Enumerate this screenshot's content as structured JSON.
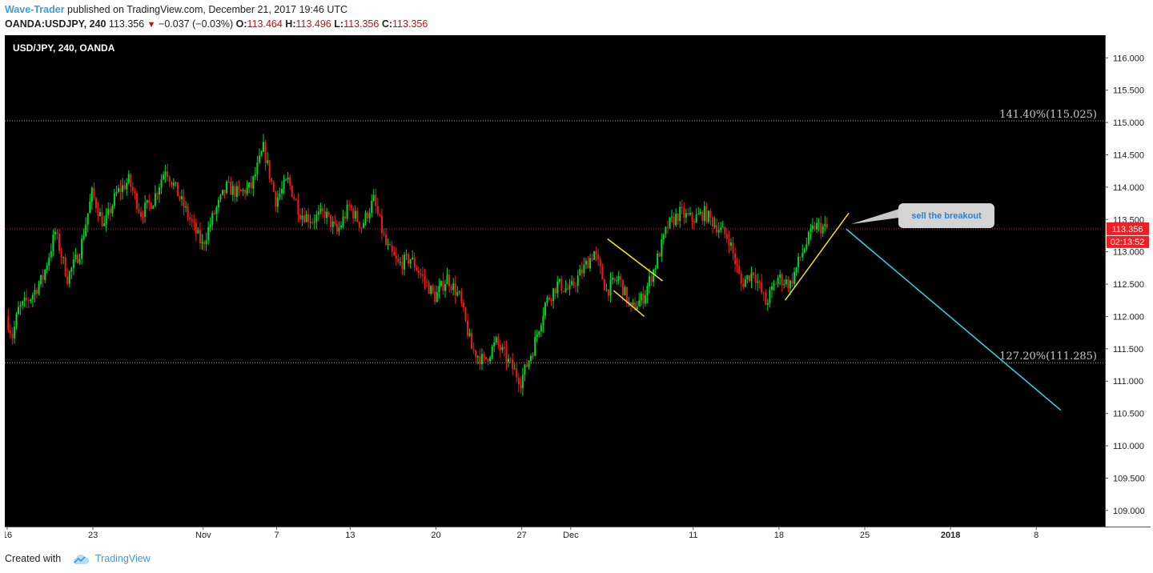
{
  "header": {
    "author": "Wave-Trader",
    "published_text": " published on TradingView.com, December 21, 2017 19:46 UTC",
    "symbol": "OANDA:USDJPY, 240",
    "last": "113.356",
    "change": "−0.037 (−0.03%)",
    "o_label": "O:",
    "o_val": "113.464",
    "h_label": "H:",
    "h_val": "113.496",
    "l_label": "L:",
    "l_val": "113.356",
    "c_label": "C:",
    "c_val": "113.356"
  },
  "footer": {
    "created_with": "Created with",
    "brand": "TradingView"
  },
  "colors": {
    "background": "#000000",
    "up_candle": "#00d928",
    "down_candle": "#f11a1a",
    "pattern_lines": "#f5e21a",
    "projection_line": "#2fd6e0",
    "price_line": "#e0182d",
    "fib_line": "#a8a8a8",
    "author": "#3d9bdb"
  },
  "chart_data": {
    "type": "candlestick",
    "title": "USD/JPY, 240, OANDA",
    "timeframe": "240",
    "y_axis": {
      "range": [
        108.75,
        116.35
      ],
      "ticks": [
        "116.000",
        "115.500",
        "115.000",
        "114.500",
        "114.000",
        "113.500",
        "113.000",
        "112.500",
        "112.000",
        "111.500",
        "111.000",
        "110.500",
        "110.000",
        "109.500",
        "109.000"
      ]
    },
    "x_axis": {
      "range": [
        "Oct 16",
        "Jan 10"
      ],
      "ticks": [
        {
          "label": "16",
          "date": "2017-10-16",
          "bold": false
        },
        {
          "label": "23",
          "date": "2017-10-23",
          "bold": false
        },
        {
          "label": "Nov",
          "date": "2017-11-01",
          "bold": false
        },
        {
          "label": "7",
          "date": "2017-11-07",
          "bold": false
        },
        {
          "label": "13",
          "date": "2017-11-13",
          "bold": false
        },
        {
          "label": "20",
          "date": "2017-11-20",
          "bold": false
        },
        {
          "label": "27",
          "date": "2017-11-27",
          "bold": false
        },
        {
          "label": "Dec",
          "date": "2017-12-01",
          "bold": false
        },
        {
          "label": "11",
          "date": "2017-12-11",
          "bold": false
        },
        {
          "label": "18",
          "date": "2017-12-18",
          "bold": false
        },
        {
          "label": "25",
          "date": "2017-12-25",
          "bold": false
        },
        {
          "label": "2018",
          "date": "2018-01-01",
          "bold": true
        },
        {
          "label": "8",
          "date": "2018-01-08",
          "bold": false
        }
      ]
    },
    "price_path": [
      [
        "2017-10-16",
        112.0
      ],
      [
        "2017-10-16.5",
        111.7
      ],
      [
        "2017-10-17",
        112.1
      ],
      [
        "2017-10-18",
        112.3
      ],
      [
        "2017-10-19",
        112.6
      ],
      [
        "2017-10-20",
        113.3
      ],
      [
        "2017-10-21",
        112.6
      ],
      [
        "2017-10-22",
        113.0
      ],
      [
        "2017-10-23",
        113.9
      ],
      [
        "2017-10-24",
        113.4
      ],
      [
        "2017-10-25",
        113.9
      ],
      [
        "2017-10-26",
        114.1
      ],
      [
        "2017-10-27",
        113.6
      ],
      [
        "2017-10-28",
        113.8
      ],
      [
        "2017-10-29",
        114.3
      ],
      [
        "2017-10-30",
        113.9
      ],
      [
        "2017-10-31",
        113.5
      ],
      [
        "2017-11-01",
        113.1
      ],
      [
        "2017-11-02",
        113.6
      ],
      [
        "2017-11-03",
        114.0
      ],
      [
        "2017-11-04",
        113.9
      ],
      [
        "2017-11-05",
        114.0
      ],
      [
        "2017-11-06",
        114.6
      ],
      [
        "2017-11-07",
        113.8
      ],
      [
        "2017-11-08",
        114.1
      ],
      [
        "2017-11-09",
        113.6
      ],
      [
        "2017-11-10",
        113.5
      ],
      [
        "2017-11-11",
        113.6
      ],
      [
        "2017-11-12",
        113.3
      ],
      [
        "2017-11-13",
        113.7
      ],
      [
        "2017-11-14",
        113.4
      ],
      [
        "2017-11-15",
        113.8
      ],
      [
        "2017-11-16",
        113.1
      ],
      [
        "2017-11-17",
        112.8
      ],
      [
        "2017-11-18",
        112.9
      ],
      [
        "2017-11-19",
        112.6
      ],
      [
        "2017-11-20",
        112.3
      ],
      [
        "2017-11-21",
        112.6
      ],
      [
        "2017-11-22",
        112.3
      ],
      [
        "2017-11-23",
        111.5
      ],
      [
        "2017-11-24",
        111.3
      ],
      [
        "2017-11-25",
        111.6
      ],
      [
        "2017-11-26",
        111.3
      ],
      [
        "2017-11-27",
        111.0
      ],
      [
        "2017-11-28",
        111.5
      ],
      [
        "2017-11-29",
        112.2
      ],
      [
        "2017-11-30",
        112.5
      ],
      [
        "2017-12-01",
        112.4
      ],
      [
        "2017-12-02",
        112.7
      ],
      [
        "2017-12-03",
        113.0
      ],
      [
        "2017-12-04",
        112.4
      ],
      [
        "2017-12-05",
        112.6
      ],
      [
        "2017-12-06",
        112.1
      ],
      [
        "2017-12-07",
        112.3
      ],
      [
        "2017-12-08",
        112.8
      ],
      [
        "2017-12-09",
        113.4
      ],
      [
        "2017-12-10",
        113.6
      ],
      [
        "2017-12-11",
        113.5
      ],
      [
        "2017-12-12",
        113.6
      ],
      [
        "2017-12-13",
        113.4
      ],
      [
        "2017-12-14",
        113.2
      ],
      [
        "2017-12-15",
        112.5
      ],
      [
        "2017-12-16",
        112.7
      ],
      [
        "2017-12-17",
        112.2
      ],
      [
        "2017-12-18",
        112.6
      ],
      [
        "2017-12-19",
        112.5
      ],
      [
        "2017-12-20",
        113.0
      ],
      [
        "2017-12-21",
        113.4
      ],
      [
        "2017-12-22",
        113.356
      ]
    ],
    "last_price": "113.356",
    "countdown": "02:13:52",
    "fib_levels": [
      {
        "label": "141.40%(115.025)",
        "price": 115.025
      },
      {
        "label": "127.20%(111.285)",
        "price": 111.285
      }
    ],
    "annotations": [
      {
        "type": "callout",
        "text": "sell the breakout"
      },
      {
        "type": "trendline",
        "name": "flag-upper",
        "from": [
          "2017-12-04",
          113.2
        ],
        "to": [
          "2017-12-08.5",
          112.55
        ]
      },
      {
        "type": "trendline",
        "name": "flag-lower",
        "from": [
          "2017-12-04.5",
          112.4
        ],
        "to": [
          "2017-12-07",
          112.0
        ]
      },
      {
        "type": "trendline",
        "name": "rising-wedge",
        "from": [
          "2017-12-18.5",
          112.25
        ],
        "to": [
          "2017-12-23.7",
          113.6
        ]
      },
      {
        "type": "trendline",
        "name": "projection",
        "from": [
          "2017-12-23.5",
          113.35
        ],
        "to": [
          "2018-01-10",
          110.55
        ]
      }
    ]
  }
}
